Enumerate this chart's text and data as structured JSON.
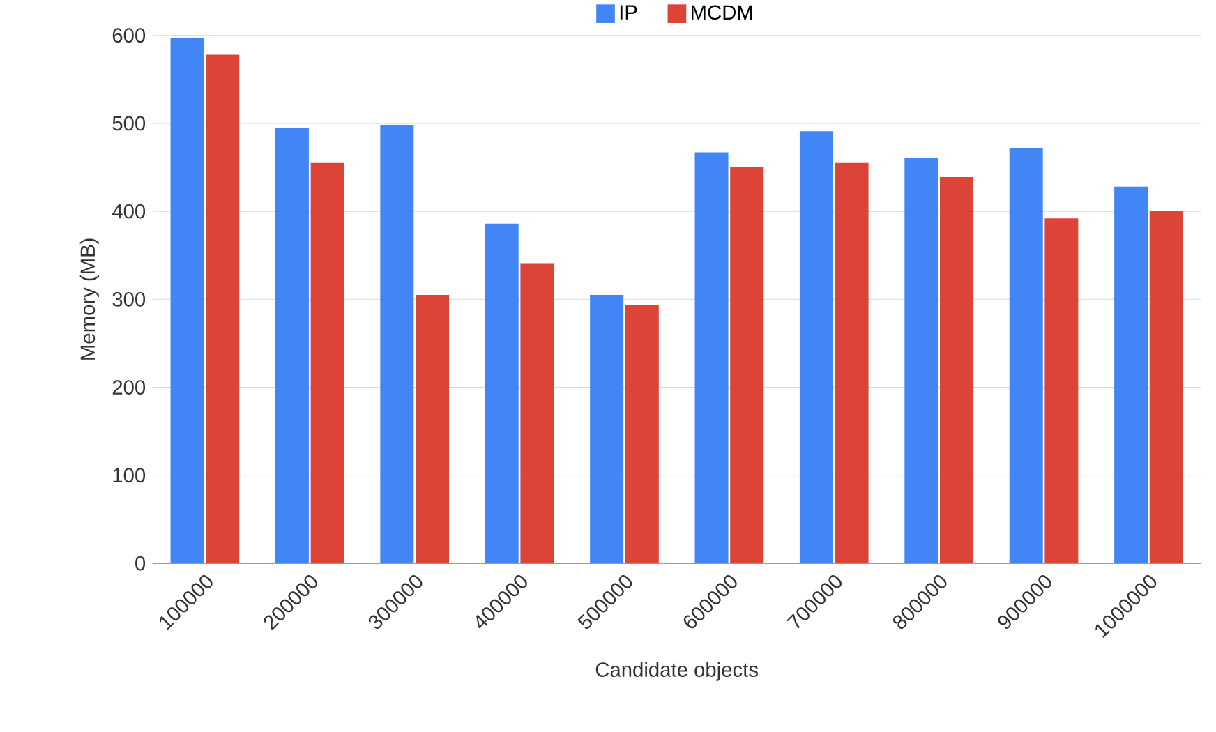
{
  "chart_data": {
    "type": "bar",
    "xlabel": "Candidate objects",
    "ylabel": "Memory (MB)",
    "categories": [
      "100000",
      "200000",
      "300000",
      "400000",
      "500000",
      "600000",
      "700000",
      "800000",
      "900000",
      "1000000"
    ],
    "series": [
      {
        "name": "IP",
        "color": "#4285f4",
        "values": [
          597,
          495,
          498,
          386,
          305,
          467,
          491,
          461,
          472,
          428
        ]
      },
      {
        "name": "MCDM",
        "color": "#db4437",
        "values": [
          578,
          455,
          305,
          341,
          294,
          450,
          455,
          439,
          392,
          400
        ]
      }
    ],
    "ylim": [
      0,
      600
    ],
    "yticks": [
      0,
      100,
      200,
      300,
      400,
      500,
      600
    ],
    "grid": "y",
    "legend": "top"
  }
}
